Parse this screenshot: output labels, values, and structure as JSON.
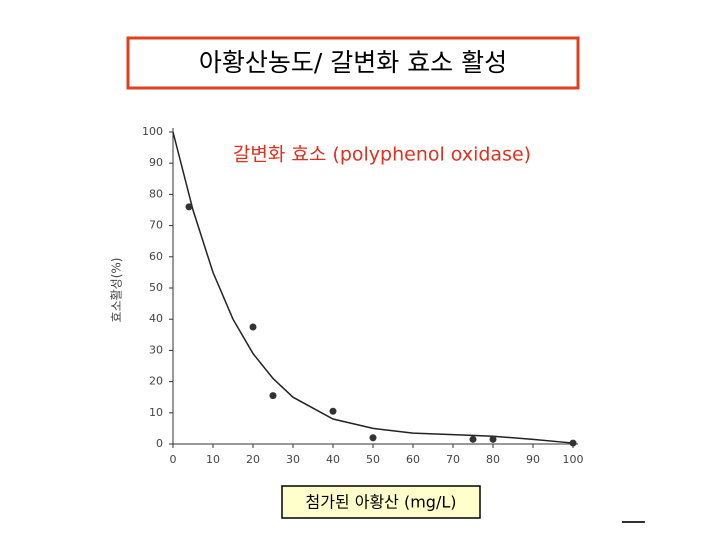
{
  "chart_data": {
    "type": "scatter",
    "title": "아황산농도/ 갈변화 효소 활성",
    "annotation": "갈변화 효소 (polyphenol oxidase)",
    "x_label": "첨가된 아황산 (mg/L)",
    "y_label": "효소활성(%)",
    "x": [
      4,
      20,
      25,
      40,
      50,
      75,
      80,
      100
    ],
    "values": [
      76,
      37.5,
      15.5,
      10.5,
      2,
      1.5,
      1.5,
      0.3
    ],
    "color": "#333333",
    "curve": {
      "x": [
        0,
        5,
        10,
        15,
        20,
        25,
        30,
        40,
        50,
        60,
        70,
        80,
        90,
        100
      ],
      "values": [
        100,
        75,
        55,
        40,
        29,
        21,
        15,
        8,
        5,
        3.5,
        3,
        2.5,
        1.5,
        0.3
      ]
    },
    "xlim": [
      0,
      100
    ],
    "xticks": [
      0,
      10,
      20,
      30,
      40,
      50,
      60,
      70,
      80,
      90,
      100
    ],
    "ylim": [
      0,
      100
    ],
    "yticks": [
      0,
      10,
      20,
      30,
      40,
      50,
      60,
      70,
      80,
      90,
      100
    ]
  }
}
